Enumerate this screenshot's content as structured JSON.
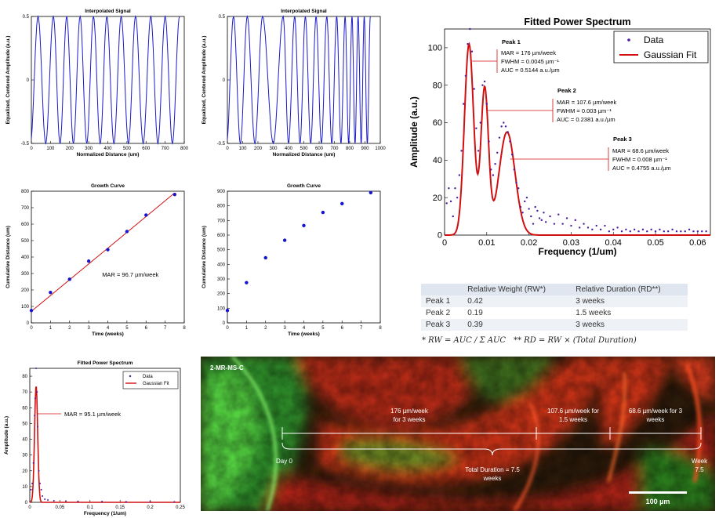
{
  "chart_data": [
    {
      "id": "sig1",
      "type": "line",
      "title": "Interpolated Signal",
      "xlabel": "Normalized Distance (um)",
      "ylabel": "Equalized, Centered Amplitude (a.u.)",
      "xlim": [
        0,
        800
      ],
      "ylim": [
        -0.5,
        0.5
      ],
      "xticks": [
        0,
        100,
        200,
        300,
        400,
        500,
        600,
        700,
        800
      ],
      "yticks": [
        -0.5,
        0,
        0.5
      ],
      "ytick_labels": [
        "-0.5",
        "0",
        "0.5"
      ],
      "peaks": [
        35,
        115,
        185,
        255,
        325,
        395,
        470,
        545,
        625,
        700,
        775
      ],
      "troughs": [
        75,
        150,
        220,
        290,
        360,
        432,
        508,
        585,
        662,
        738
      ]
    },
    {
      "id": "sig2",
      "type": "line",
      "title": "Interpolated Signal",
      "xlabel": "Normalized Distance (um)",
      "ylabel": "Equalized, Centered Amplitude (a.u.)",
      "xlim": [
        0,
        1000
      ],
      "ylim": [
        -0.5,
        0.5
      ],
      "xticks": [
        0,
        100,
        200,
        300,
        400,
        500,
        600,
        700,
        800,
        900,
        1000
      ],
      "yticks": [
        -0.5,
        0,
        0.5
      ],
      "ytick_labels": [
        "-0.5",
        "0",
        "0.5"
      ],
      "peaks": [
        40,
        130,
        230,
        365,
        440,
        510,
        580,
        650,
        715,
        770,
        815,
        855,
        895,
        935
      ],
      "troughs": [
        85,
        180,
        300,
        400,
        475,
        545,
        615,
        683,
        743,
        793,
        835,
        875,
        915
      ]
    },
    {
      "id": "growth1",
      "type": "scatter",
      "title": "Growth Curve",
      "xlabel": "Time (weeks)",
      "ylabel": "Cumulative Distance (um)",
      "xlim": [
        0,
        8
      ],
      "ylim": [
        0,
        800
      ],
      "xticks": [
        0,
        1,
        2,
        3,
        4,
        5,
        6,
        7,
        8
      ],
      "yticks": [
        0,
        100,
        200,
        300,
        400,
        500,
        600,
        700,
        800
      ],
      "x": [
        0,
        1,
        2,
        3,
        4,
        5,
        6,
        7.5
      ],
      "y": [
        75,
        185,
        265,
        375,
        445,
        555,
        655,
        780
      ],
      "fit": {
        "x": [
          0,
          7.5
        ],
        "y": [
          70,
          790
        ]
      },
      "annotation": "MAR = 96.7 µm/week"
    },
    {
      "id": "growth2",
      "type": "scatter",
      "title": "Growth Curve",
      "xlabel": "Time (weeks)",
      "ylabel": "Cumulative Distance (um)",
      "xlim": [
        0,
        8
      ],
      "ylim": [
        0,
        900
      ],
      "xticks": [
        0,
        1,
        2,
        3,
        4,
        5,
        6,
        7,
        8
      ],
      "yticks": [
        0,
        100,
        200,
        300,
        400,
        500,
        600,
        700,
        800,
        900
      ],
      "x": [
        0,
        1,
        2,
        3,
        4,
        5,
        6,
        7.5
      ],
      "y": [
        85,
        275,
        445,
        565,
        665,
        755,
        815,
        890
      ]
    },
    {
      "id": "spectrum_small",
      "type": "line",
      "title": "Fitted Power Spectrum",
      "xlabel": "Frequency (1/um)",
      "ylabel": "Amplitude (a.u.)",
      "xlim": [
        0,
        0.25
      ],
      "ylim": [
        0,
        85
      ],
      "xticks": [
        0,
        0.05,
        0.1,
        0.15,
        0.2,
        0.25
      ],
      "xtick_labels": [
        "0",
        "0.05",
        "0.1",
        "0.15",
        "0.2",
        "0.25"
      ],
      "yticks": [
        0,
        10,
        20,
        30,
        40,
        50,
        60,
        70,
        80
      ],
      "legend": [
        "Data",
        "Gaussian Fit"
      ],
      "fit": {
        "a": 74,
        "mu": 0.0105,
        "sigma": 0.0026
      },
      "data_points": [
        [
          0.002,
          8
        ],
        [
          0.004,
          12
        ],
        [
          0.006,
          25
        ],
        [
          0.008,
          55
        ],
        [
          0.009,
          66
        ],
        [
          0.0105,
          85
        ],
        [
          0.012,
          70
        ],
        [
          0.013,
          48
        ],
        [
          0.015,
          20
        ],
        [
          0.017,
          12
        ],
        [
          0.019,
          8
        ],
        [
          0.021,
          4
        ],
        [
          0.025,
          2
        ],
        [
          0.03,
          1.5
        ],
        [
          0.04,
          1
        ],
        [
          0.06,
          0.8
        ],
        [
          0.08,
          0.6
        ],
        [
          0.12,
          0.5
        ],
        [
          0.16,
          0.4
        ],
        [
          0.2,
          0.4
        ],
        [
          0.24,
          0.3
        ]
      ],
      "annotation": "MAR = 95.1 µm/week"
    },
    {
      "id": "spectrum_main",
      "type": "line",
      "title": "Fitted Power Spectrum",
      "xlabel": "Frequency (1/um)",
      "ylabel": "Amplitude (a.u.)",
      "xlim": [
        0,
        0.063
      ],
      "ylim": [
        0,
        110
      ],
      "xticks": [
        0,
        0.01,
        0.02,
        0.03,
        0.04,
        0.05,
        0.06
      ],
      "xtick_labels": [
        "0",
        "0.01",
        "0.02",
        "0.03",
        "0.04",
        "0.05",
        "0.06"
      ],
      "yticks": [
        0,
        20,
        40,
        60,
        80,
        100
      ],
      "legend": [
        "Data",
        "Gaussian Fit"
      ],
      "fit_components": [
        {
          "a": 102,
          "mu": 0.0058,
          "sigma": 0.0011
        },
        {
          "a": 78,
          "mu": 0.0095,
          "sigma": 0.0009
        },
        {
          "a": 55,
          "mu": 0.0148,
          "sigma": 0.0019
        }
      ],
      "data_points": [
        [
          0.0005,
          17
        ],
        [
          0.001,
          25
        ],
        [
          0.0015,
          18
        ],
        [
          0.002,
          10
        ],
        [
          0.0025,
          25
        ],
        [
          0.003,
          20
        ],
        [
          0.0035,
          32
        ],
        [
          0.004,
          45
        ],
        [
          0.0045,
          70
        ],
        [
          0.005,
          85
        ],
        [
          0.0055,
          102
        ],
        [
          0.006,
          110
        ],
        [
          0.0065,
          98
        ],
        [
          0.007,
          78
        ],
        [
          0.0075,
          57
        ],
        [
          0.008,
          45
        ],
        [
          0.0085,
          60
        ],
        [
          0.009,
          80
        ],
        [
          0.0095,
          82
        ],
        [
          0.01,
          70
        ],
        [
          0.0105,
          50
        ],
        [
          0.011,
          35
        ],
        [
          0.0115,
          32
        ],
        [
          0.012,
          38
        ],
        [
          0.0125,
          44
        ],
        [
          0.013,
          52
        ],
        [
          0.0135,
          58
        ],
        [
          0.014,
          60
        ],
        [
          0.0145,
          58
        ],
        [
          0.015,
          55
        ],
        [
          0.0155,
          50
        ],
        [
          0.016,
          43
        ],
        [
          0.0165,
          35
        ],
        [
          0.017,
          28
        ],
        [
          0.0175,
          25
        ],
        [
          0.018,
          15
        ],
        [
          0.0185,
          12
        ],
        [
          0.019,
          18
        ],
        [
          0.0195,
          20
        ],
        [
          0.02,
          14
        ],
        [
          0.0205,
          10
        ],
        [
          0.021,
          6
        ],
        [
          0.0215,
          15
        ],
        [
          0.022,
          13
        ],
        [
          0.0225,
          9
        ],
        [
          0.023,
          8
        ],
        [
          0.0235,
          12
        ],
        [
          0.024,
          7
        ],
        [
          0.025,
          10
        ],
        [
          0.026,
          6
        ],
        [
          0.027,
          11
        ],
        [
          0.028,
          6
        ],
        [
          0.029,
          9
        ],
        [
          0.03,
          5
        ],
        [
          0.031,
          8
        ],
        [
          0.032,
          4
        ],
        [
          0.033,
          6
        ],
        [
          0.034,
          4
        ],
        [
          0.035,
          3
        ],
        [
          0.036,
          5
        ],
        [
          0.037,
          3
        ],
        [
          0.038,
          5
        ],
        [
          0.039,
          2
        ],
        [
          0.04,
          3
        ],
        [
          0.041,
          4
        ],
        [
          0.042,
          2
        ],
        [
          0.043,
          3
        ],
        [
          0.044,
          2
        ],
        [
          0.045,
          3
        ],
        [
          0.046,
          2
        ],
        [
          0.047,
          3
        ],
        [
          0.048,
          2
        ],
        [
          0.049,
          3
        ],
        [
          0.05,
          2
        ],
        [
          0.051,
          3
        ],
        [
          0.052,
          2
        ],
        [
          0.053,
          2
        ],
        [
          0.054,
          3
        ],
        [
          0.055,
          2
        ],
        [
          0.056,
          2
        ],
        [
          0.057,
          2
        ],
        [
          0.058,
          3
        ],
        [
          0.059,
          2
        ],
        [
          0.06,
          2
        ],
        [
          0.061,
          2
        ],
        [
          0.062,
          2
        ]
      ],
      "peaks": [
        {
          "label": "Peak 1",
          "mar": "MAR = 176 µm/week",
          "fwhm": "FWHM = 0.0045 µm⁻¹",
          "auc": "AUC = 0.5144 a.u./µm",
          "x": 0.0058,
          "y": 102
        },
        {
          "label": "Peak 2",
          "mar": "MAR = 107.6 µm/week",
          "fwhm": "FWHM = 0.003 µm⁻¹",
          "auc": "AUC = 0.2381 a.u./µm",
          "x": 0.0095,
          "y": 78
        },
        {
          "label": "Peak 3",
          "mar": "MAR = 68.6 µm/week",
          "fwhm": "FWHM = 0.008 µm⁻¹",
          "auc": "AUC = 0.4755 a.u./µm",
          "x": 0.0148,
          "y": 55
        }
      ]
    }
  ],
  "table": {
    "headers": [
      "",
      "Relative Weight (RW*)",
      "Relative Duration (RD**)"
    ],
    "rows": [
      [
        "Peak 1",
        "0.42",
        "3 weeks"
      ],
      [
        "Peak 2",
        "0.19",
        "1.5 weeks"
      ],
      [
        "Peak 3",
        "0.39",
        "3 weeks"
      ]
    ]
  },
  "formulas": {
    "rw": "* RW = AUC / Σ AUC",
    "rd": "** RD = RW × (Total Duration)"
  },
  "micrograph": {
    "label": "2-MR-MS-C",
    "segment1": [
      "176 µm/week",
      "for 3 weeks"
    ],
    "segment2": [
      "107.6 µm/week for",
      "1.5 weeks"
    ],
    "segment3": [
      "68.6 µm/week for 3",
      "weeks"
    ],
    "day0": "Day 0",
    "week_end": [
      "Week",
      "7.5"
    ],
    "total": [
      "Total Duration = 7.5",
      "weeks"
    ],
    "scale": "100 µm"
  }
}
